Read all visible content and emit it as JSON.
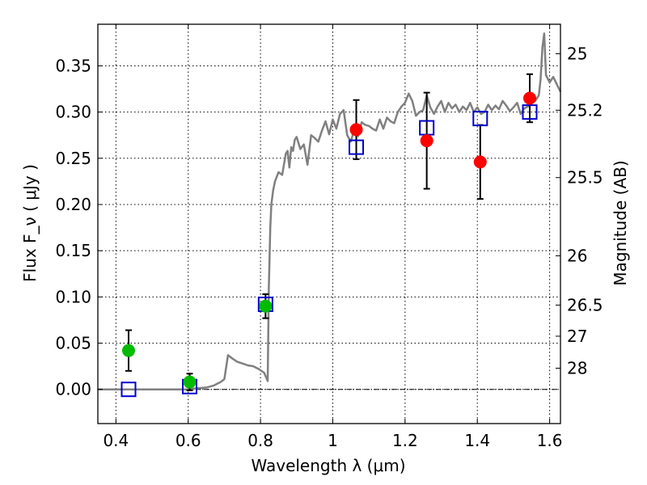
{
  "chart_data": {
    "type": "scatter",
    "xlabel": "Wavelength  λ (μm)",
    "ylabel": "Flux  F_ν  ( μJy )",
    "ylabel_right": "Magnitude (AB)",
    "xlim": [
      0.35,
      1.63
    ],
    "ylim": [
      -0.037,
      0.395
    ],
    "x_ticks": [
      0.4,
      0.6,
      0.8,
      1.0,
      1.2,
      1.4,
      1.6
    ],
    "x_tick_labels": [
      "0.4",
      "0.6",
      "0.8",
      "1",
      "1.2",
      "1.4",
      "1.6"
    ],
    "y_ticks": [
      0.0,
      0.05,
      0.1,
      0.15,
      0.2,
      0.25,
      0.3,
      0.35
    ],
    "y_tick_labels": [
      "0.00",
      "0.05",
      "0.10",
      "0.15",
      "0.20",
      "0.25",
      "0.30",
      "0.35"
    ],
    "right_ticks": [
      {
        "label": "25",
        "flux": 0.3631
      },
      {
        "label": "25.2",
        "flux": 0.302
      },
      {
        "label": "25.5",
        "flux": 0.2291
      },
      {
        "label": "26",
        "flux": 0.1445
      },
      {
        "label": "26.5",
        "flux": 0.0912
      },
      {
        "label": "27",
        "flux": 0.0575
      },
      {
        "label": "28",
        "flux": 0.0229
      }
    ],
    "grid": true,
    "zero_line": 0.0,
    "series": [
      {
        "kind": "model_sed",
        "color": "#808080",
        "x": [
          0.35,
          0.45,
          0.55,
          0.6,
          0.62,
          0.65,
          0.67,
          0.69,
          0.7,
          0.71,
          0.72,
          0.735,
          0.75,
          0.765,
          0.78,
          0.795,
          0.81,
          0.82,
          0.823,
          0.827,
          0.83,
          0.835,
          0.84,
          0.845,
          0.85,
          0.86,
          0.87,
          0.875,
          0.88,
          0.885,
          0.89,
          0.895,
          0.9,
          0.91,
          0.92,
          0.93,
          0.94,
          0.95,
          0.96,
          0.97,
          0.98,
          0.99,
          1.0,
          1.01,
          1.02,
          1.03,
          1.04,
          1.05,
          1.06,
          1.07,
          1.08,
          1.09,
          1.1,
          1.11,
          1.12,
          1.13,
          1.14,
          1.15,
          1.16,
          1.17,
          1.18,
          1.19,
          1.2,
          1.21,
          1.22,
          1.23,
          1.24,
          1.25,
          1.26,
          1.27,
          1.28,
          1.29,
          1.3,
          1.31,
          1.32,
          1.33,
          1.34,
          1.35,
          1.36,
          1.37,
          1.38,
          1.39,
          1.4,
          1.41,
          1.42,
          1.43,
          1.44,
          1.45,
          1.46,
          1.47,
          1.48,
          1.49,
          1.5,
          1.51,
          1.52,
          1.53,
          1.54,
          1.55,
          1.56,
          1.57,
          1.575,
          1.58,
          1.585,
          1.59,
          1.6,
          1.61,
          1.62,
          1.63
        ],
        "y": [
          0.0,
          0.0,
          0.0,
          0.0,
          0.001,
          0.002,
          0.004,
          0.008,
          0.011,
          0.037,
          0.034,
          0.03,
          0.028,
          0.026,
          0.025,
          0.022,
          0.018,
          0.009,
          0.11,
          0.175,
          0.2,
          0.215,
          0.225,
          0.23,
          0.235,
          0.232,
          0.255,
          0.258,
          0.24,
          0.262,
          0.258,
          0.27,
          0.273,
          0.26,
          0.265,
          0.243,
          0.275,
          0.272,
          0.268,
          0.28,
          0.29,
          0.276,
          0.292,
          0.282,
          0.298,
          0.302,
          0.275,
          0.268,
          0.282,
          0.274,
          0.289,
          0.286,
          0.285,
          0.282,
          0.28,
          0.292,
          0.282,
          0.294,
          0.29,
          0.288,
          0.3,
          0.306,
          0.31,
          0.32,
          0.312,
          0.296,
          0.3,
          0.302,
          0.318,
          0.305,
          0.298,
          0.306,
          0.312,
          0.3,
          0.31,
          0.304,
          0.308,
          0.3,
          0.306,
          0.302,
          0.31,
          0.3,
          0.305,
          0.298,
          0.3,
          0.308,
          0.302,
          0.307,
          0.303,
          0.312,
          0.307,
          0.301,
          0.305,
          0.31,
          0.298,
          0.304,
          0.306,
          0.31,
          0.312,
          0.318,
          0.335,
          0.37,
          0.385,
          0.34,
          0.332,
          0.338,
          0.33,
          0.322
        ]
      },
      {
        "kind": "detections_green",
        "color": "#00bb00",
        "x": [
          0.435,
          0.604,
          0.814
        ],
        "y": [
          0.042,
          0.008,
          0.09
        ],
        "yerr": [
          0.022,
          0.009,
          0.013
        ]
      },
      {
        "kind": "detections_red",
        "color": "#ff0000",
        "x": [
          1.065,
          1.26,
          1.408,
          1.545
        ],
        "y": [
          0.281,
          0.269,
          0.246,
          0.315
        ],
        "yerr": [
          0.032,
          0.052,
          0.04,
          0.026
        ]
      },
      {
        "kind": "model_bandpass_squares",
        "color": "#0000cc",
        "x": [
          0.435,
          0.604,
          0.814,
          1.065,
          1.26,
          1.408,
          1.545
        ],
        "y": [
          0.0,
          0.003,
          0.092,
          0.262,
          0.283,
          0.293,
          0.3
        ]
      }
    ]
  }
}
